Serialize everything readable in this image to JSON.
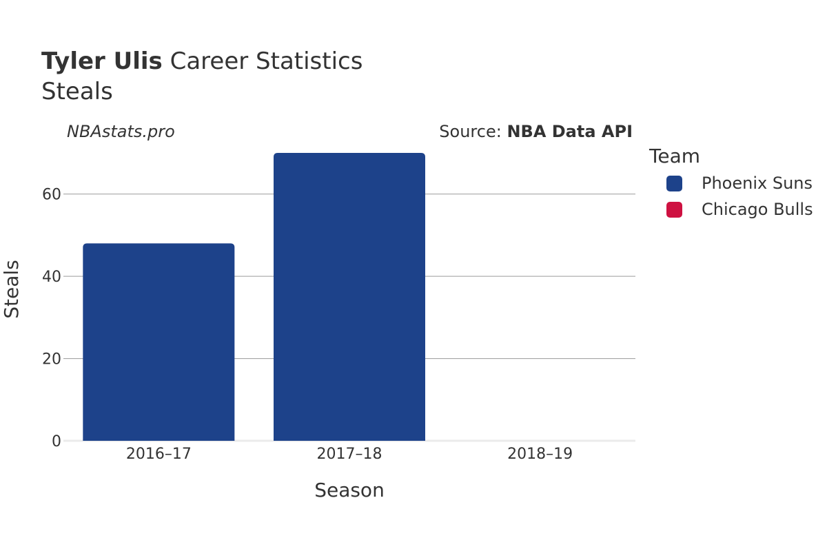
{
  "header": {
    "title_bold": "Tyler Ulis",
    "title_rest": " Career Statistics",
    "subtitle": "Steals",
    "watermark": "NBAstats.pro",
    "source_prefix": "Source: ",
    "source_name": "NBA Data API"
  },
  "legend": {
    "title": "Team",
    "items": [
      {
        "label": "Phoenix Suns",
        "color": "#1d428a"
      },
      {
        "label": "Chicago Bulls",
        "color": "#ce1141"
      }
    ]
  },
  "chart_data": {
    "type": "bar",
    "title": "Tyler Ulis Career Statistics",
    "subtitle": "Steals",
    "xlabel": "Season",
    "ylabel": "Steals",
    "categories": [
      "2016–17",
      "2017–18",
      "2018–19"
    ],
    "series": [
      {
        "name": "Phoenix Suns",
        "color": "#1d428a",
        "values": [
          48,
          70,
          0
        ]
      },
      {
        "name": "Chicago Bulls",
        "color": "#ce1141",
        "values": [
          0,
          0,
          0
        ]
      }
    ],
    "ylim": [
      0,
      70
    ],
    "yticks": [
      0,
      20,
      40,
      60
    ],
    "ytick_labels": [
      "0",
      "20",
      "40",
      "60"
    ],
    "grid": true,
    "legend_position": "right"
  }
}
